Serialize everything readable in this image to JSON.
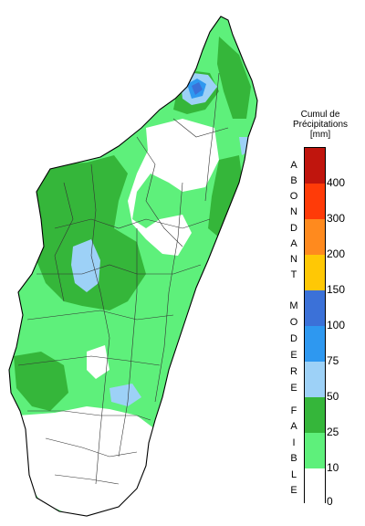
{
  "legend": {
    "title_lines": [
      "Cumul de",
      "Précipitations",
      "[mm]"
    ],
    "ticks": [
      "400",
      "300",
      "200",
      "150",
      "100",
      "75",
      "50",
      "25",
      "10",
      "0"
    ],
    "colors": [
      "#c0150d",
      "#ff3b08",
      "#ff8a1e",
      "#ffc805",
      "#3b71d8",
      "#2e98f0",
      "#9dd1f7",
      "#35b63a",
      "#5ef07b",
      "#ffffff"
    ],
    "categories": [
      {
        "letters": [
          "A",
          "B",
          "O",
          "N",
          "D",
          "A",
          "N",
          "T"
        ]
      },
      {
        "letters": [
          "M",
          "O",
          "D",
          "E",
          "R",
          "E"
        ]
      },
      {
        "letters": [
          "F",
          "A",
          "I",
          "B",
          "L",
          "E"
        ]
      }
    ]
  },
  "map_colors": {
    "faible_light": "#5ef07b",
    "faible_dark": "#35b63a",
    "modere_light": "#9dd1f7",
    "modere_mid": "#2e98f0",
    "modere_dark": "#3b71d8",
    "no_rain": "#ffffff",
    "boundary": "#000000"
  }
}
